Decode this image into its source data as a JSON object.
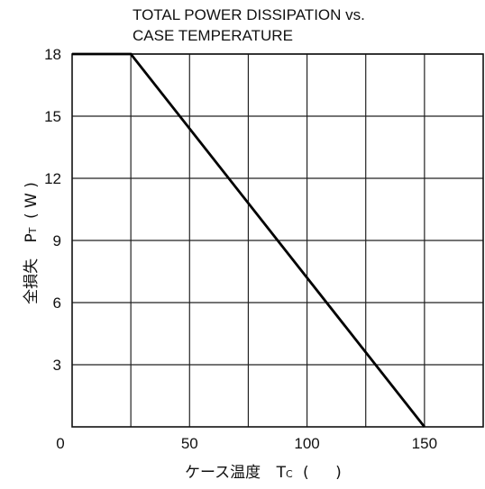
{
  "chart_data": {
    "type": "line",
    "title_lines": [
      "TOTAL POWER DISSIPATION vs.",
      "CASE TEMPERATURE"
    ],
    "xlabel": {
      "text": "ケース温度",
      "symbol_main": "T",
      "symbol_sub": "C",
      "unit_open": "(",
      "unit_close": ")"
    },
    "ylabel": {
      "text": "全損失",
      "symbol_main": "P",
      "symbol_sub": "T",
      "unit": "( W )"
    },
    "xlim": [
      0,
      175
    ],
    "ylim": [
      0,
      18
    ],
    "x_ticks": [
      0,
      50,
      100,
      150
    ],
    "y_ticks": [
      3,
      6,
      9,
      12,
      15,
      18
    ],
    "x_tick_labels": [
      "0",
      "50",
      "100",
      "150"
    ],
    "y_tick_labels": [
      "3",
      "6",
      "9",
      "12",
      "15",
      "18"
    ],
    "x_grid": [
      25,
      50,
      75,
      100,
      125,
      150
    ],
    "y_grid": [
      3,
      6,
      9,
      12,
      15,
      18
    ],
    "grid": true,
    "series": [
      {
        "x": [
          0,
          25,
          150
        ],
        "y": [
          18,
          18,
          0
        ]
      }
    ]
  }
}
